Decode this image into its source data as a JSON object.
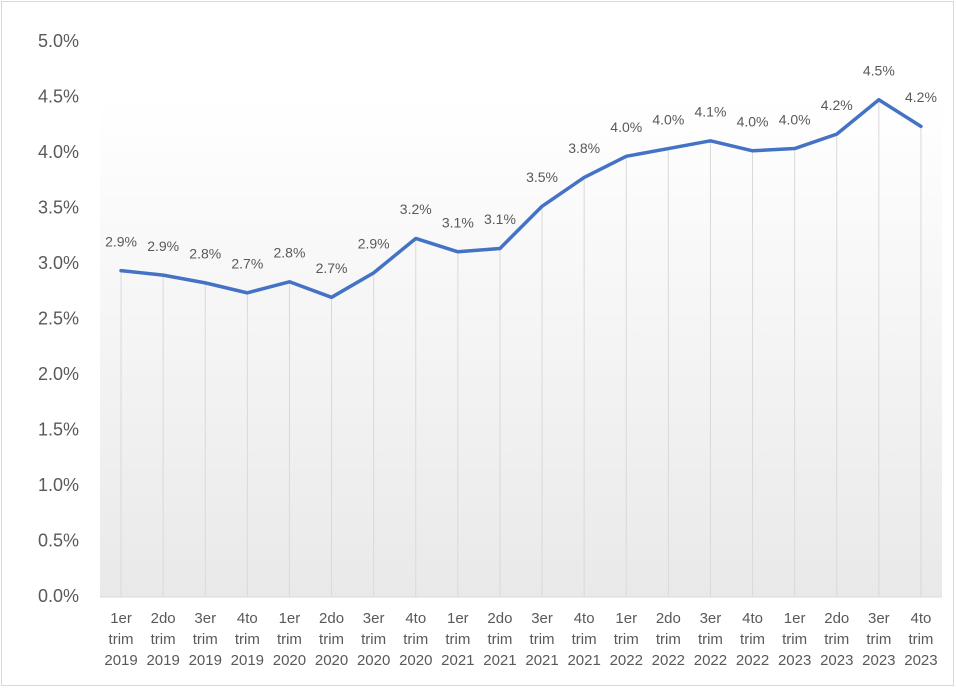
{
  "chart_data": {
    "type": "line",
    "categories": [
      [
        "1er",
        "trim",
        "2019"
      ],
      [
        "2do",
        "trim",
        "2019"
      ],
      [
        "3er",
        "trim",
        "2019"
      ],
      [
        "4to",
        "trim",
        "2019"
      ],
      [
        "1er",
        "trim",
        "2020"
      ],
      [
        "2do",
        "trim",
        "2020"
      ],
      [
        "3er",
        "trim",
        "2020"
      ],
      [
        "4to",
        "trim",
        "2020"
      ],
      [
        "1er",
        "trim",
        "2021"
      ],
      [
        "2do",
        "trim",
        "2021"
      ],
      [
        "3er",
        "trim",
        "2021"
      ],
      [
        "4to",
        "trim",
        "2021"
      ],
      [
        "1er",
        "trim",
        "2022"
      ],
      [
        "2do",
        "trim",
        "2022"
      ],
      [
        "3er",
        "trim",
        "2022"
      ],
      [
        "4to",
        "trim",
        "2022"
      ],
      [
        "1er",
        "trim",
        "2023"
      ],
      [
        "2do",
        "trim",
        "2023"
      ],
      [
        "3er",
        "trim",
        "2023"
      ],
      [
        "4to",
        "trim",
        "2023"
      ]
    ],
    "values": [
      2.94,
      2.9,
      2.83,
      2.74,
      2.84,
      2.7,
      2.92,
      3.23,
      3.11,
      3.14,
      3.52,
      3.78,
      3.97,
      4.04,
      4.11,
      4.02,
      4.04,
      4.17,
      4.48,
      4.24
    ],
    "value_labels": [
      "2.9%",
      "2.9%",
      "2.8%",
      "2.7%",
      "2.8%",
      "2.7%",
      "2.9%",
      "3.2%",
      "3.1%",
      "3.1%",
      "3.5%",
      "3.8%",
      "4.0%",
      "4.0%",
      "4.1%",
      "4.0%",
      "4.0%",
      "4.2%",
      "4.5%",
      "4.2%"
    ],
    "color": "#4472c4",
    "ylim": [
      0,
      5
    ],
    "yticks": [
      {
        "value": 0,
        "label": "0.0%"
      },
      {
        "value": 0.5,
        "label": "0.5%"
      },
      {
        "value": 1,
        "label": "1.0%"
      },
      {
        "value": 1.5,
        "label": "1.5%"
      },
      {
        "value": 2,
        "label": "2.0%"
      },
      {
        "value": 2.5,
        "label": "2.5%"
      },
      {
        "value": 3,
        "label": "3.0%"
      },
      {
        "value": 3.5,
        "label": "3.5%"
      },
      {
        "value": 4,
        "label": "4.0%"
      },
      {
        "value": 4.5,
        "label": "4.5%"
      },
      {
        "value": 5,
        "label": "5.0%"
      }
    ],
    "drop_lines": true
  }
}
